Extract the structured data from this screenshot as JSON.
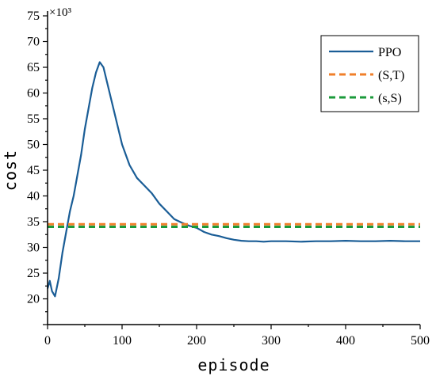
{
  "chart_data": {
    "type": "line",
    "xlabel": "episode",
    "ylabel": "cost",
    "xlim": [
      0,
      500
    ],
    "ylim": [
      15,
      75
    ],
    "x_ticks": [
      0,
      100,
      200,
      300,
      400,
      500
    ],
    "y_ticks": [
      20,
      25,
      30,
      35,
      40,
      45,
      50,
      55,
      60,
      65,
      70,
      75
    ],
    "y_multiplier": "×10³",
    "grid": false,
    "legend_position": "top-right",
    "series": [
      {
        "name": "PPO",
        "color": "#1a5d96",
        "style": "solid",
        "x": [
          0,
          3,
          6,
          10,
          15,
          20,
          25,
          30,
          35,
          40,
          45,
          50,
          55,
          60,
          65,
          70,
          75,
          80,
          85,
          90,
          95,
          100,
          110,
          120,
          130,
          140,
          150,
          160,
          170,
          180,
          190,
          200,
          210,
          220,
          230,
          240,
          250,
          260,
          270,
          280,
          290,
          300,
          320,
          340,
          360,
          380,
          400,
          420,
          440,
          460,
          480,
          500
        ],
        "y": [
          22,
          23.5,
          21.5,
          20.5,
          24,
          29,
          33,
          37,
          40,
          44,
          48,
          53,
          57,
          61,
          64,
          66,
          65,
          62,
          59,
          56,
          53,
          50,
          46,
          43.5,
          42,
          40.5,
          38.5,
          37,
          35.5,
          34.8,
          34.2,
          33.8,
          33,
          32.5,
          32.2,
          31.8,
          31.5,
          31.3,
          31.2,
          31.2,
          31.1,
          31.2,
          31.2,
          31.1,
          31.2,
          31.2,
          31.3,
          31.2,
          31.2,
          31.3,
          31.2,
          31.2
        ]
      },
      {
        "name": "(S,T)",
        "color": "#f07f2a",
        "style": "dashed",
        "x": [
          0,
          500
        ],
        "y": [
          34.5,
          34.5
        ]
      },
      {
        "name": "(s,S)",
        "color": "#1a9a3a",
        "style": "dashed",
        "x": [
          0,
          500
        ],
        "y": [
          34,
          34
        ]
      }
    ]
  }
}
